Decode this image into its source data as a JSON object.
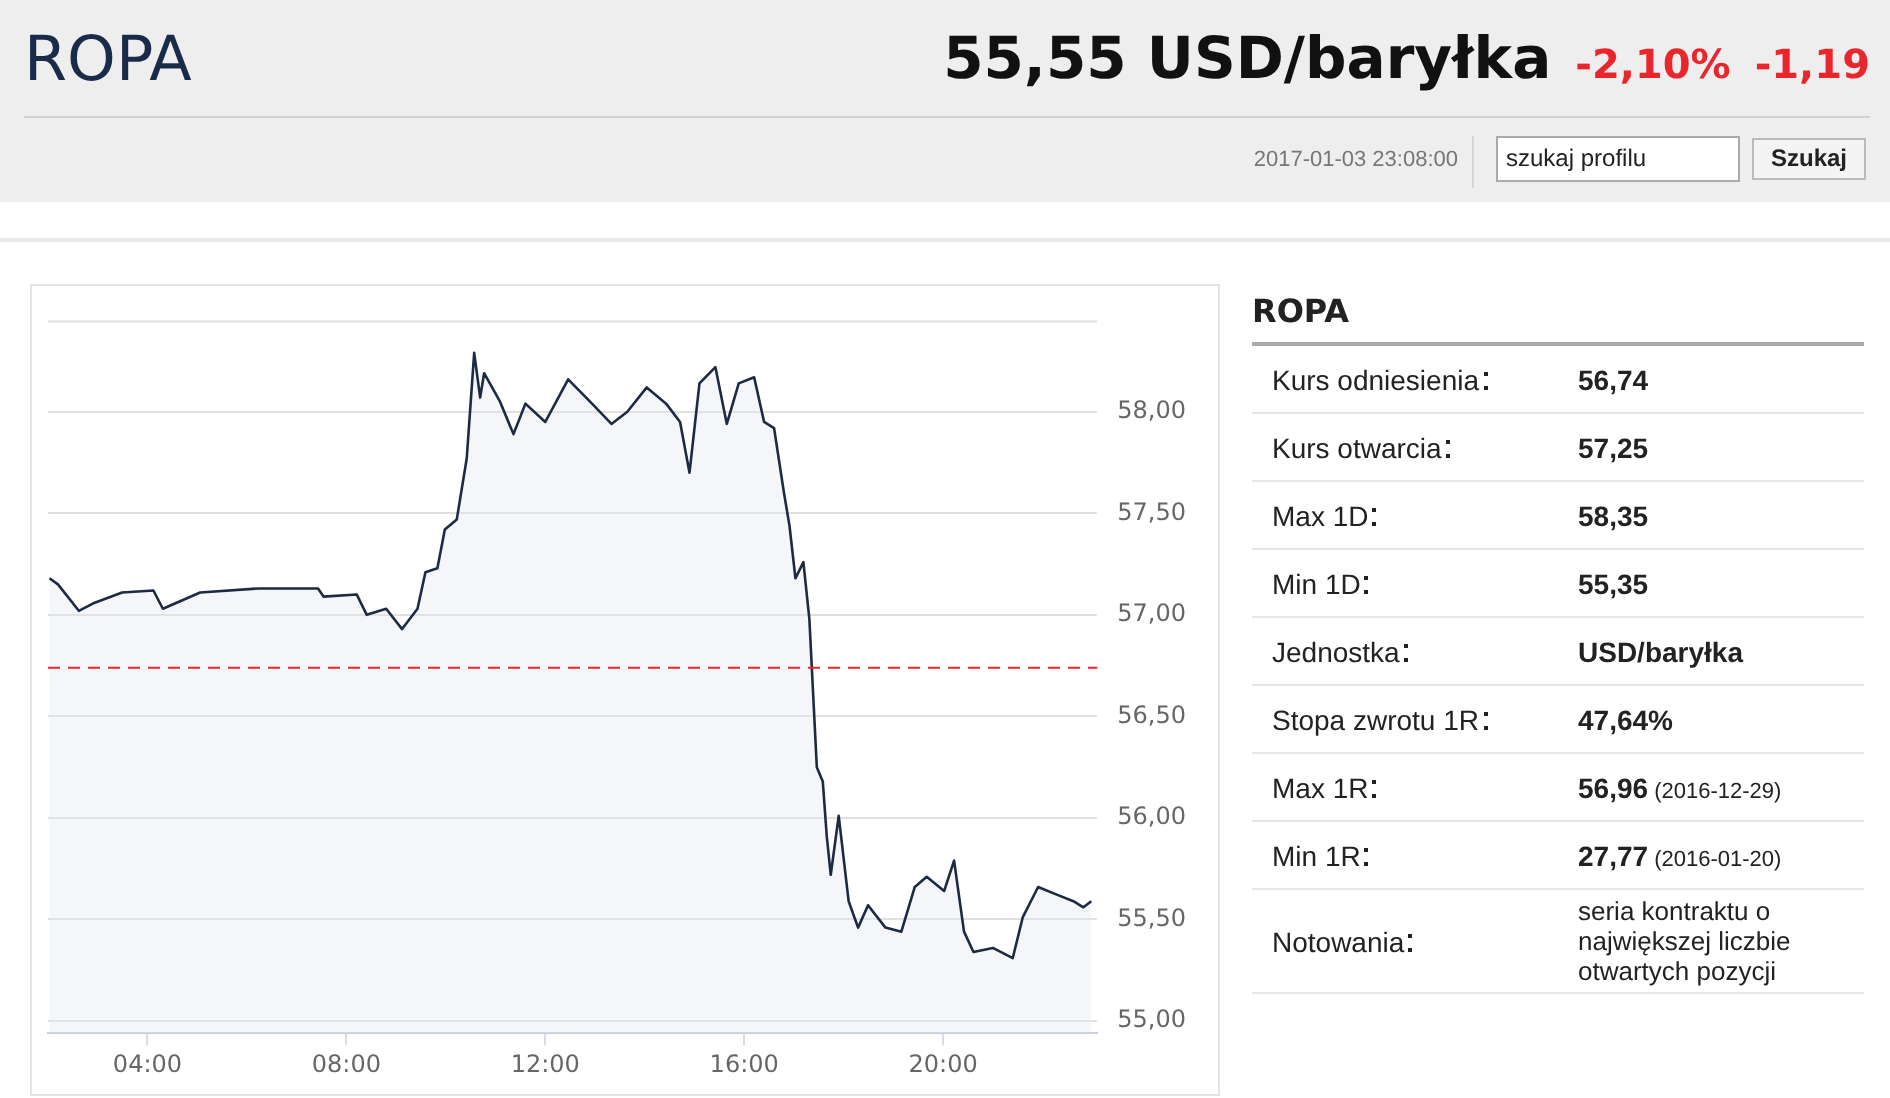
{
  "chart_data": [
    {
      "type": "other",
      "title": "ROPA",
      "subtitle": "55,55 USD/baryłka",
      "annotations": [
        "-2,10%",
        "-1,19",
        "2017-01-03 23:08:00",
        "szukaj profilu",
        "Szukaj"
      ]
    },
    {
      "type": "area",
      "xlim": [
        2,
        23.1
      ],
      "ylim": [
        54.94,
        58.45
      ],
      "xticks": [
        {
          "value": 4,
          "label": "04:00"
        },
        {
          "value": 8,
          "label": "08:00"
        },
        {
          "value": 12,
          "label": "12:00"
        },
        {
          "value": 16,
          "label": "16:00"
        },
        {
          "value": 20,
          "label": "20:00"
        }
      ],
      "yticks": [
        {
          "value": 55,
          "label": "55,00"
        },
        {
          "value": 55.5,
          "label": "55,50"
        },
        {
          "value": 56,
          "label": "56,00"
        },
        {
          "value": 56.5,
          "label": "56,50"
        },
        {
          "value": 57,
          "label": "57,00"
        },
        {
          "value": 57.5,
          "label": "57,50"
        },
        {
          "value": 58,
          "label": "58,00"
        }
      ],
      "grid": "y",
      "legend": false,
      "marker": "none",
      "ref_lines": [
        {
          "axis": "y",
          "value": 56.74,
          "color": "#e8262b",
          "line_style": "dashed"
        }
      ],
      "series": [
        {
          "color": "#1c2a44",
          "x": [
            2.03,
            2.2,
            2.62,
            2.94,
            3.49,
            4.12,
            4.31,
            5.06,
            6.24,
            7.43,
            7.54,
            8.21,
            8.41,
            8.8,
            9.12,
            9.43,
            9.59,
            9.83,
            9.98,
            10.22,
            10.42,
            10.57,
            10.69,
            10.77,
            11.09,
            11.36,
            11.6,
            12.0,
            12.46,
            12.94,
            13.33,
            13.65,
            14.04,
            14.43,
            14.71,
            14.9,
            15.1,
            15.42,
            15.65,
            15.89,
            16.2,
            16.4,
            16.6,
            16.8,
            16.91,
            17.03,
            17.19,
            17.31,
            17.46,
            17.58,
            17.66,
            17.74,
            17.9,
            18.1,
            18.29,
            18.49,
            18.84,
            19.16,
            19.43,
            19.67,
            20.02,
            20.22,
            20.42,
            20.61,
            21.0,
            21.4,
            21.6,
            21.91,
            22.31,
            22.62,
            22.82,
            22.98
          ],
          "values": [
            57.18,
            57.15,
            57.02,
            57.06,
            57.11,
            57.12,
            57.03,
            57.11,
            57.13,
            57.13,
            57.09,
            57.1,
            57.0,
            57.03,
            56.93,
            57.03,
            57.21,
            57.23,
            57.42,
            57.47,
            57.77,
            58.29,
            58.07,
            58.19,
            58.05,
            57.89,
            58.04,
            57.95,
            58.16,
            58.04,
            57.94,
            58.0,
            58.12,
            58.04,
            57.95,
            57.7,
            58.14,
            58.22,
            57.94,
            58.14,
            58.17,
            57.95,
            57.92,
            57.6,
            57.44,
            57.18,
            57.26,
            56.98,
            56.25,
            56.18,
            55.91,
            55.72,
            56.01,
            55.59,
            55.46,
            55.57,
            55.46,
            55.44,
            55.66,
            55.71,
            55.64,
            55.79,
            55.44,
            55.34,
            55.36,
            55.31,
            55.51,
            55.66,
            55.62,
            55.59,
            55.56,
            55.59
          ]
        }
      ]
    },
    {
      "type": "other",
      "title": "ROPA",
      "categories": [
        "Kurs odniesienia",
        "Kurs otwarcia",
        "Max 1D",
        "Min 1D",
        "Jednostka",
        "Stopa zwrotu 1R",
        "Max 1R",
        "Min 1R",
        "Notowania"
      ],
      "annotations": [
        "56,74",
        "57,25",
        "58,35",
        "55,35",
        "USD/baryłka",
        "47,64%",
        "56,96 (2016-12-29)",
        "27,77 (2016-01-20)",
        "seria kontraktu o największej liczbie otwartych pozycji"
      ]
    }
  ]
}
